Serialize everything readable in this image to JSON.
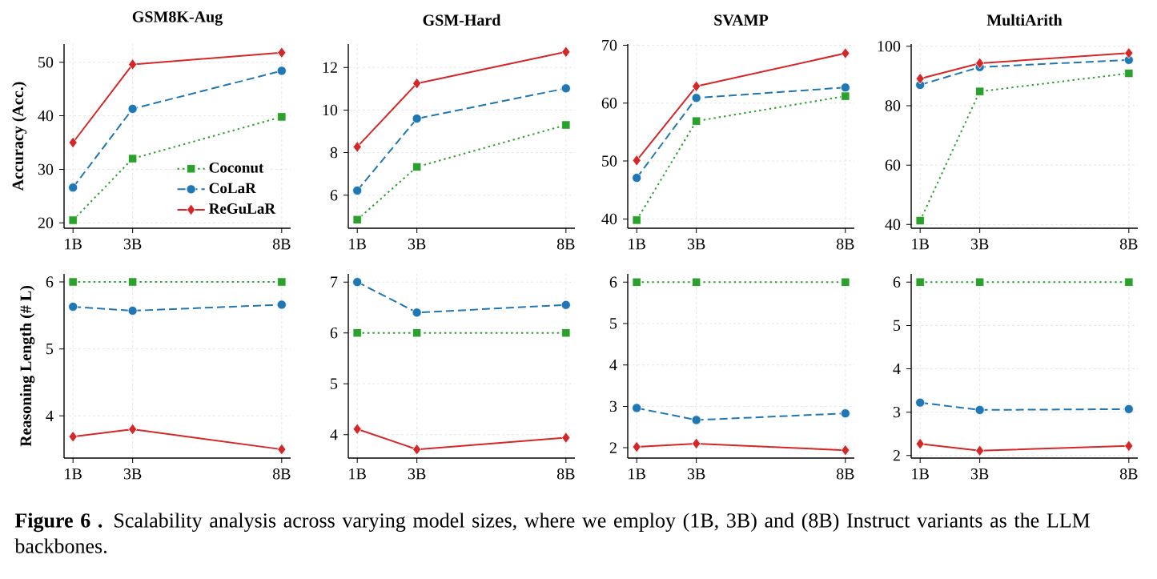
{
  "chart_data": [
    {
      "type": "line",
      "title": "GSM8K-Aug",
      "ylabel": "Accuracy (Acc.)",
      "x": [
        1,
        3,
        8
      ],
      "xlim": [
        0.7,
        8.3
      ],
      "xticks": [
        {
          "value": 1,
          "label": "1B"
        },
        {
          "value": 3,
          "label": "3B"
        },
        {
          "value": 8,
          "label": "8B"
        }
      ],
      "ylim": [
        19,
        53.4
      ],
      "yticks": [
        20,
        30,
        40,
        50
      ],
      "grid": true,
      "legend": "bottom right",
      "annotations": [
        "**Figure 6 .** Scalability analysis across varying model sizes, where we employ (1B, 3B) and (8B) Instruct variants as the LLM backbones."
      ],
      "series": [
        {
          "name": "Coconut",
          "color": "#2ca02c",
          "marker": "square",
          "line_style": "dotted",
          "values": [
            20.5,
            32.0,
            39.8
          ]
        },
        {
          "name": "CoLaR",
          "color": "#1f77b4",
          "marker": "circle",
          "line_style": "dashed",
          "values": [
            26.6,
            41.3,
            48.4
          ]
        },
        {
          "name": "ReGuLaR",
          "color": "#d62728",
          "marker": "diamond",
          "line_style": "solid",
          "values": [
            35.0,
            49.6,
            51.8
          ]
        }
      ]
    },
    {
      "type": "line",
      "title": "GSM-Hard",
      "x": [
        1,
        3,
        8
      ],
      "xlim": [
        0.7,
        8.3
      ],
      "xticks": [
        {
          "value": 1,
          "label": "1B"
        },
        {
          "value": 3,
          "label": "3B"
        },
        {
          "value": 8,
          "label": "8B"
        }
      ],
      "ylim": [
        4.45,
        13.1
      ],
      "yticks": [
        6,
        8,
        10,
        12
      ],
      "grid": true,
      "series": [
        {
          "color": "#2ca02c",
          "marker": "square",
          "line_style": "dotted",
          "values": [
            4.85,
            7.33,
            9.3
          ]
        },
        {
          "color": "#1f77b4",
          "marker": "circle",
          "line_style": "dashed",
          "values": [
            6.22,
            9.6,
            11.02
          ]
        },
        {
          "color": "#d62728",
          "marker": "diamond",
          "line_style": "solid",
          "values": [
            8.27,
            11.25,
            12.73
          ]
        }
      ]
    },
    {
      "type": "line",
      "title": "SVAMP",
      "x": [
        1,
        3,
        8
      ],
      "xlim": [
        0.7,
        8.3
      ],
      "xticks": [
        {
          "value": 1,
          "label": "1B"
        },
        {
          "value": 3,
          "label": "3B"
        },
        {
          "value": 8,
          "label": "8B"
        }
      ],
      "ylim": [
        38.4,
        70.2
      ],
      "yticks": [
        40,
        50,
        60,
        70
      ],
      "grid": true,
      "series": [
        {
          "color": "#2ca02c",
          "marker": "square",
          "line_style": "dotted",
          "values": [
            39.8,
            56.9,
            61.2
          ]
        },
        {
          "color": "#1f77b4",
          "marker": "circle",
          "line_style": "dashed",
          "values": [
            47.1,
            60.9,
            62.7
          ]
        },
        {
          "color": "#d62728",
          "marker": "diamond",
          "line_style": "solid",
          "values": [
            50.1,
            62.9,
            68.6
          ]
        }
      ]
    },
    {
      "type": "line",
      "title": "MultiArith",
      "x": [
        1,
        3,
        8
      ],
      "xlim": [
        0.7,
        8.3
      ],
      "xticks": [
        {
          "value": 1,
          "label": "1B"
        },
        {
          "value": 3,
          "label": "3B"
        },
        {
          "value": 8,
          "label": "8B"
        }
      ],
      "ylim": [
        38.75,
        100.75
      ],
      "yticks": [
        40,
        60,
        80,
        100
      ],
      "grid": true,
      "series": [
        {
          "color": "#2ca02c",
          "marker": "square",
          "line_style": "dotted",
          "values": [
            41.3,
            84.8,
            90.9
          ]
        },
        {
          "color": "#1f77b4",
          "marker": "circle",
          "line_style": "dashed",
          "values": [
            87.0,
            93.0,
            95.4
          ]
        },
        {
          "color": "#d62728",
          "marker": "diamond",
          "line_style": "solid",
          "values": [
            89.1,
            94.3,
            97.7
          ]
        }
      ]
    },
    {
      "type": "line",
      "ylabel": "Reasoning Length (# L)",
      "x": [
        1,
        3,
        8
      ],
      "xlim": [
        0.7,
        8.3
      ],
      "xticks": [
        {
          "value": 1,
          "label": "1B"
        },
        {
          "value": 3,
          "label": "3B"
        },
        {
          "value": 8,
          "label": "8B"
        }
      ],
      "ylim": [
        3.37,
        6.12
      ],
      "yticks": [
        4,
        5,
        6
      ],
      "grid": true,
      "series": [
        {
          "color": "#2ca02c",
          "marker": "square",
          "line_style": "dotted",
          "values": [
            6.0,
            6.0,
            6.0
          ]
        },
        {
          "color": "#1f77b4",
          "marker": "circle",
          "line_style": "dashed",
          "values": [
            5.63,
            5.57,
            5.66
          ]
        },
        {
          "color": "#d62728",
          "marker": "diamond",
          "line_style": "solid",
          "values": [
            3.69,
            3.8,
            3.5
          ]
        }
      ]
    },
    {
      "type": "line",
      "x": [
        1,
        3,
        8
      ],
      "xlim": [
        0.7,
        8.3
      ],
      "xticks": [
        {
          "value": 1,
          "label": "1B"
        },
        {
          "value": 3,
          "label": "3B"
        },
        {
          "value": 8,
          "label": "8B"
        }
      ],
      "ylim": [
        3.54,
        7.16
      ],
      "yticks": [
        4,
        5,
        6,
        7
      ],
      "grid": true,
      "series": [
        {
          "color": "#2ca02c",
          "marker": "square",
          "line_style": "dotted",
          "values": [
            6.0,
            6.0,
            6.0
          ]
        },
        {
          "color": "#1f77b4",
          "marker": "circle",
          "line_style": "dashed",
          "values": [
            7.0,
            6.4,
            6.55
          ]
        },
        {
          "color": "#d62728",
          "marker": "diamond",
          "line_style": "solid",
          "values": [
            4.11,
            3.71,
            3.94
          ]
        }
      ]
    },
    {
      "type": "line",
      "x": [
        1,
        3,
        8
      ],
      "xlim": [
        0.7,
        8.3
      ],
      "xticks": [
        {
          "value": 1,
          "label": "1B"
        },
        {
          "value": 3,
          "label": "3B"
        },
        {
          "value": 8,
          "label": "8B"
        }
      ],
      "ylim": [
        1.75,
        6.2
      ],
      "yticks": [
        2,
        3,
        4,
        5,
        6
      ],
      "grid": true,
      "series": [
        {
          "color": "#2ca02c",
          "marker": "square",
          "line_style": "dotted",
          "values": [
            6.0,
            6.0,
            6.0
          ]
        },
        {
          "color": "#1f77b4",
          "marker": "circle",
          "line_style": "dashed",
          "values": [
            2.96,
            2.67,
            2.83
          ]
        },
        {
          "color": "#d62728",
          "marker": "diamond",
          "line_style": "solid",
          "values": [
            2.02,
            2.1,
            1.94
          ]
        }
      ]
    },
    {
      "type": "line",
      "x": [
        1,
        3,
        8
      ],
      "xlim": [
        0.7,
        8.3
      ],
      "xticks": [
        {
          "value": 1,
          "label": "1B"
        },
        {
          "value": 3,
          "label": "3B"
        },
        {
          "value": 8,
          "label": "8B"
        }
      ],
      "ylim": [
        1.94,
        6.19
      ],
      "yticks": [
        2,
        3,
        4,
        5,
        6
      ],
      "grid": true,
      "series": [
        {
          "color": "#2ca02c",
          "marker": "square",
          "line_style": "dotted",
          "values": [
            6.0,
            6.0,
            6.0
          ]
        },
        {
          "color": "#1f77b4",
          "marker": "circle",
          "line_style": "dashed",
          "values": [
            3.22,
            3.05,
            3.07
          ]
        },
        {
          "color": "#d62728",
          "marker": "diamond",
          "line_style": "solid",
          "values": [
            2.27,
            2.11,
            2.22
          ]
        }
      ]
    }
  ]
}
